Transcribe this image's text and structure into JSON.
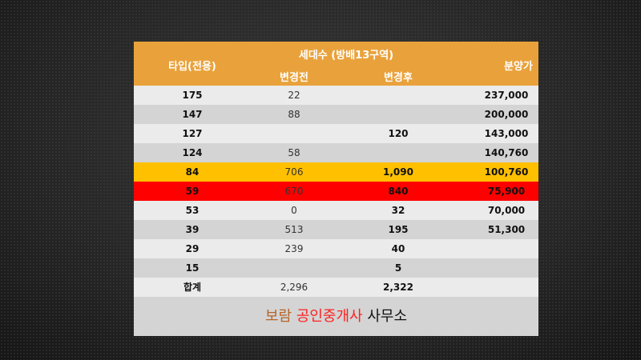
{
  "header": {
    "type": "타입(전용)",
    "households": "세대수 (방배13구역)",
    "before": "변경전",
    "after": "변경후",
    "price": "분양가"
  },
  "rows": [
    {
      "type": "175",
      "before": "22",
      "after": "",
      "price": "237,000",
      "bg": "#ebebeb"
    },
    {
      "type": "147",
      "before": "88",
      "after": "",
      "price": "200,000",
      "bg": "#d4d4d4"
    },
    {
      "type": "127",
      "before": "",
      "after": "120",
      "price": "143,000",
      "bg": "#ebebeb"
    },
    {
      "type": "124",
      "before": "58",
      "after": "",
      "price": "140,760",
      "bg": "#d4d4d4"
    },
    {
      "type": "84",
      "before": "706",
      "after": "1,090",
      "price": "100,760",
      "bg": "#ffc000"
    },
    {
      "type": "59",
      "before": "670",
      "after": "840",
      "price": "75,900",
      "bg": "#ff0000"
    },
    {
      "type": "53",
      "before": "0",
      "after": "32",
      "price": "70,000",
      "bg": "#ebebeb"
    },
    {
      "type": "39",
      "before": "513",
      "after": "195",
      "price": "51,300",
      "bg": "#d4d4d4"
    },
    {
      "type": "29",
      "before": "239",
      "after": "40",
      "price": "",
      "bg": "#ebebeb"
    },
    {
      "type": "15",
      "before": "",
      "after": "5",
      "price": "",
      "bg": "#d4d4d4"
    },
    {
      "type": "합계",
      "before": "2,296",
      "after": "2,322",
      "price": "",
      "bg": "#ebebeb"
    }
  ],
  "footer": {
    "part1": "보람",
    "part2": "공인중개사",
    "part3": "사무소",
    "color1": "#b5652a",
    "color2": "#ff2020",
    "color3": "#111111"
  }
}
